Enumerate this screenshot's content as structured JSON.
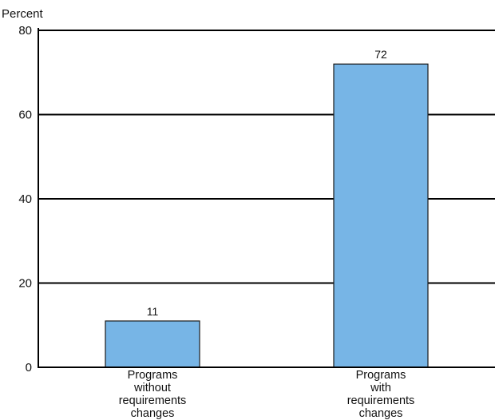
{
  "chart_data": {
    "type": "bar",
    "ylabel": "Percent",
    "ylim": [
      0,
      80
    ],
    "yticks": [
      0,
      20,
      40,
      60,
      80
    ],
    "grid": true,
    "categories": [
      [
        "Programs",
        "without",
        "requirements",
        "changes"
      ],
      [
        "Programs",
        "with",
        "requirements",
        "changes"
      ]
    ],
    "values": [
      11,
      72
    ],
    "data_labels": [
      "11",
      "72"
    ],
    "bar_color": "#77b5e6",
    "bar_stroke": "#1a1a1a"
  }
}
